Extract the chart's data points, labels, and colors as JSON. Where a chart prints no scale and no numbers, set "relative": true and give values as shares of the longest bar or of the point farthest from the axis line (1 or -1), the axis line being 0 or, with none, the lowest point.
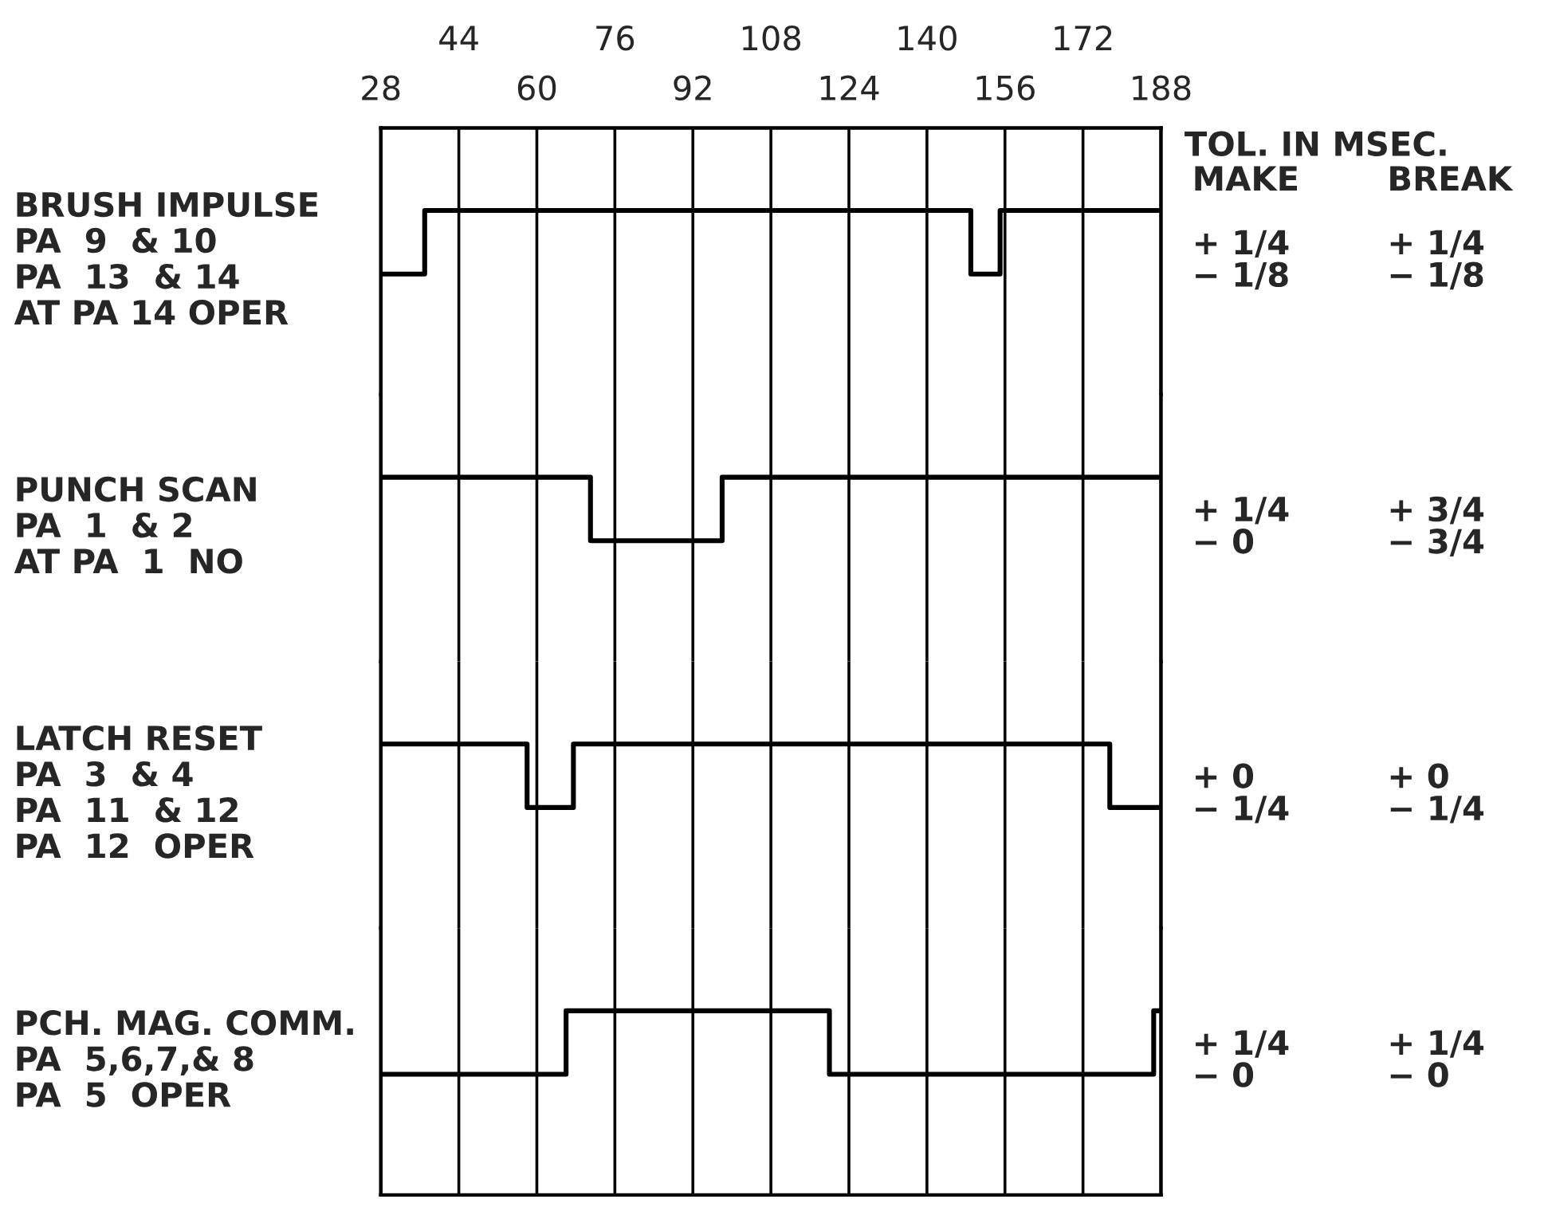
{
  "chart_data": [
    {
      "type": "step",
      "relative": true,
      "ylabel": "BRUSH IMPULSE\nPA  9  & 10\nPA  13  & 14\nAT PA 14 OPER",
      "xlim": [
        28,
        188
      ],
      "xticks": [
        28,
        60,
        92,
        124,
        156,
        188
      ],
      "x2lim": [
        28,
        188
      ],
      "x2ticks": [
        44,
        76,
        108,
        140,
        172
      ],
      "grid": "x",
      "tick_labels": "x",
      "series": [
        {
          "color": "#000000",
          "x": [
            28,
            37,
            149,
            155,
            188
          ],
          "values": [
            0,
            1,
            0,
            1,
            1
          ]
        }
      ],
      "annotations": [
        "TOL. IN MSEC.",
        "MAKE",
        "BREAK",
        "+ 1/4\n− 1/8",
        "+ 1/4\n− 1/8"
      ]
    },
    {
      "type": "step",
      "relative": true,
      "ylabel": "PUNCH SCAN\nPA  1  & 2\nAT PA  1  NO",
      "xlim": [
        28,
        188
      ],
      "xticks": [
        28,
        44,
        60,
        76,
        92,
        108,
        124,
        140,
        156,
        172,
        188
      ],
      "grid": "x",
      "tick_labels": false,
      "series": [
        {
          "color": "#000000",
          "x": [
            28,
            71,
            98,
            188
          ],
          "values": [
            1,
            0,
            1,
            1
          ]
        }
      ],
      "annotations": [
        "+ 1/4\n− 0",
        "+ 3/4\n− 3/4"
      ]
    },
    {
      "type": "step",
      "relative": true,
      "ylabel": "LATCH RESET\nPA  3  & 4\nPA  11  & 12\nPA  12  OPER",
      "xlim": [
        28,
        188
      ],
      "xticks": [
        28,
        44,
        60,
        76,
        92,
        108,
        124,
        140,
        156,
        172,
        188
      ],
      "grid": "x",
      "tick_labels": false,
      "series": [
        {
          "color": "#000000",
          "x": [
            28,
            58,
            67.5,
            177.5,
            188
          ],
          "values": [
            1,
            0,
            1,
            0,
            0
          ]
        }
      ],
      "annotations": [
        "+ 0\n− 1/4",
        "+ 0\n− 1/4"
      ]
    },
    {
      "type": "step",
      "relative": true,
      "ylabel": "PCH. MAG. COMM.\nPA  5,6,7,& 8\nPA  5  OPER",
      "xlim": [
        28,
        188
      ],
      "xticks": [
        28,
        44,
        60,
        76,
        92,
        108,
        124,
        140,
        156,
        172,
        188
      ],
      "grid": "x",
      "tick_labels": false,
      "series": [
        {
          "color": "#000000",
          "x": [
            28,
            66,
            120,
            186.5,
            188
          ],
          "values": [
            0,
            1,
            0,
            1,
            1
          ]
        }
      ],
      "annotations": [
        "+ 1/4\n− 0",
        "+ 1/4\n− 0"
      ]
    }
  ]
}
